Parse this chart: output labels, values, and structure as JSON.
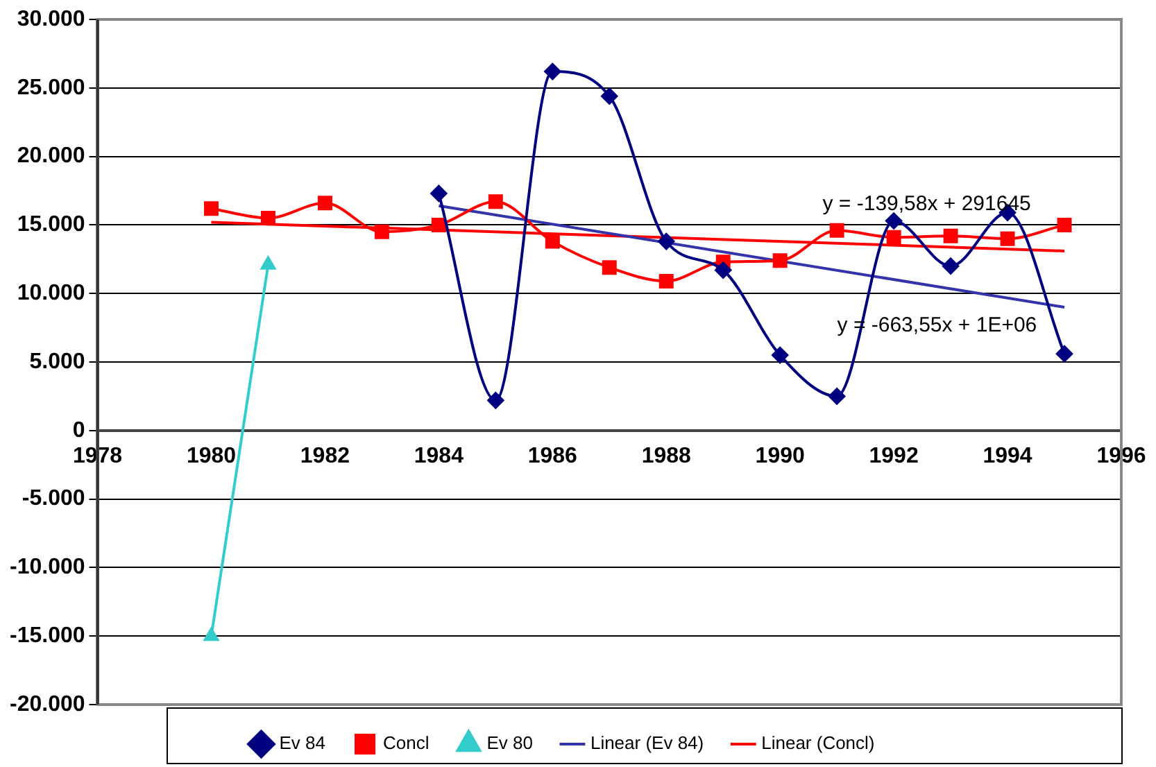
{
  "chart_data": {
    "type": "line",
    "xlim": [
      1978,
      1996
    ],
    "xticks": [
      1978,
      1980,
      1982,
      1984,
      1986,
      1988,
      1990,
      1992,
      1994,
      1996
    ],
    "ylim": [
      -20000,
      30000
    ],
    "yticks": [
      {
        "value": -20000,
        "label": "-20.000"
      },
      {
        "value": -15000,
        "label": "-15.000"
      },
      {
        "value": -10000,
        "label": "-10.000"
      },
      {
        "value": -5000,
        "label": "-5.000"
      },
      0,
      {
        "value": 5000,
        "label": "5.000"
      },
      {
        "value": 10000,
        "label": "10.000"
      },
      {
        "value": 15000,
        "label": "15.000"
      },
      {
        "value": 20000,
        "label": "20.000"
      },
      {
        "value": 25000,
        "label": "25.000"
      },
      {
        "value": 30000,
        "label": "30.000"
      }
    ],
    "grid": "y",
    "legend": "bottom",
    "series": [
      {
        "name": "Ev 84",
        "color": "#000080",
        "marker": "diamond",
        "x": [
          1984,
          1985,
          1986,
          1987,
          1988,
          1989,
          1990,
          1991,
          1992,
          1993,
          1994,
          1995
        ],
        "values": [
          17300,
          2200,
          26200,
          24400,
          13800,
          11700,
          5500,
          2500,
          15300,
          12000,
          15900,
          5600
        ]
      },
      {
        "name": "Concl",
        "color": "#ff0000",
        "marker": "square",
        "x": [
          1980,
          1981,
          1982,
          1983,
          1984,
          1985,
          1986,
          1987,
          1988,
          1989,
          1990,
          1991,
          1992,
          1993,
          1994,
          1995
        ],
        "values": [
          16200,
          15500,
          16600,
          14500,
          15000,
          16700,
          13800,
          11900,
          10900,
          12300,
          12400,
          14600,
          14100,
          14200,
          14000,
          15000
        ]
      },
      {
        "name": "Ev 80",
        "color": "#33cccc",
        "marker": "triangle",
        "x": [
          1980,
          1981
        ],
        "values": [
          -15000,
          12100
        ]
      },
      {
        "name": "Linear (Ev 84)",
        "color": "#3333aa",
        "marker": "none",
        "x": [
          1984,
          1995
        ],
        "values": [
          16400,
          9000
        ]
      },
      {
        "name": "Linear (Concl)",
        "color": "#ff0000",
        "marker": "none",
        "x": [
          1980,
          1995
        ],
        "values": [
          15200,
          13100
        ]
      }
    ],
    "annotations": [
      "y = -139,58x + 291645",
      "y = -663,55x + 1E+06"
    ]
  }
}
